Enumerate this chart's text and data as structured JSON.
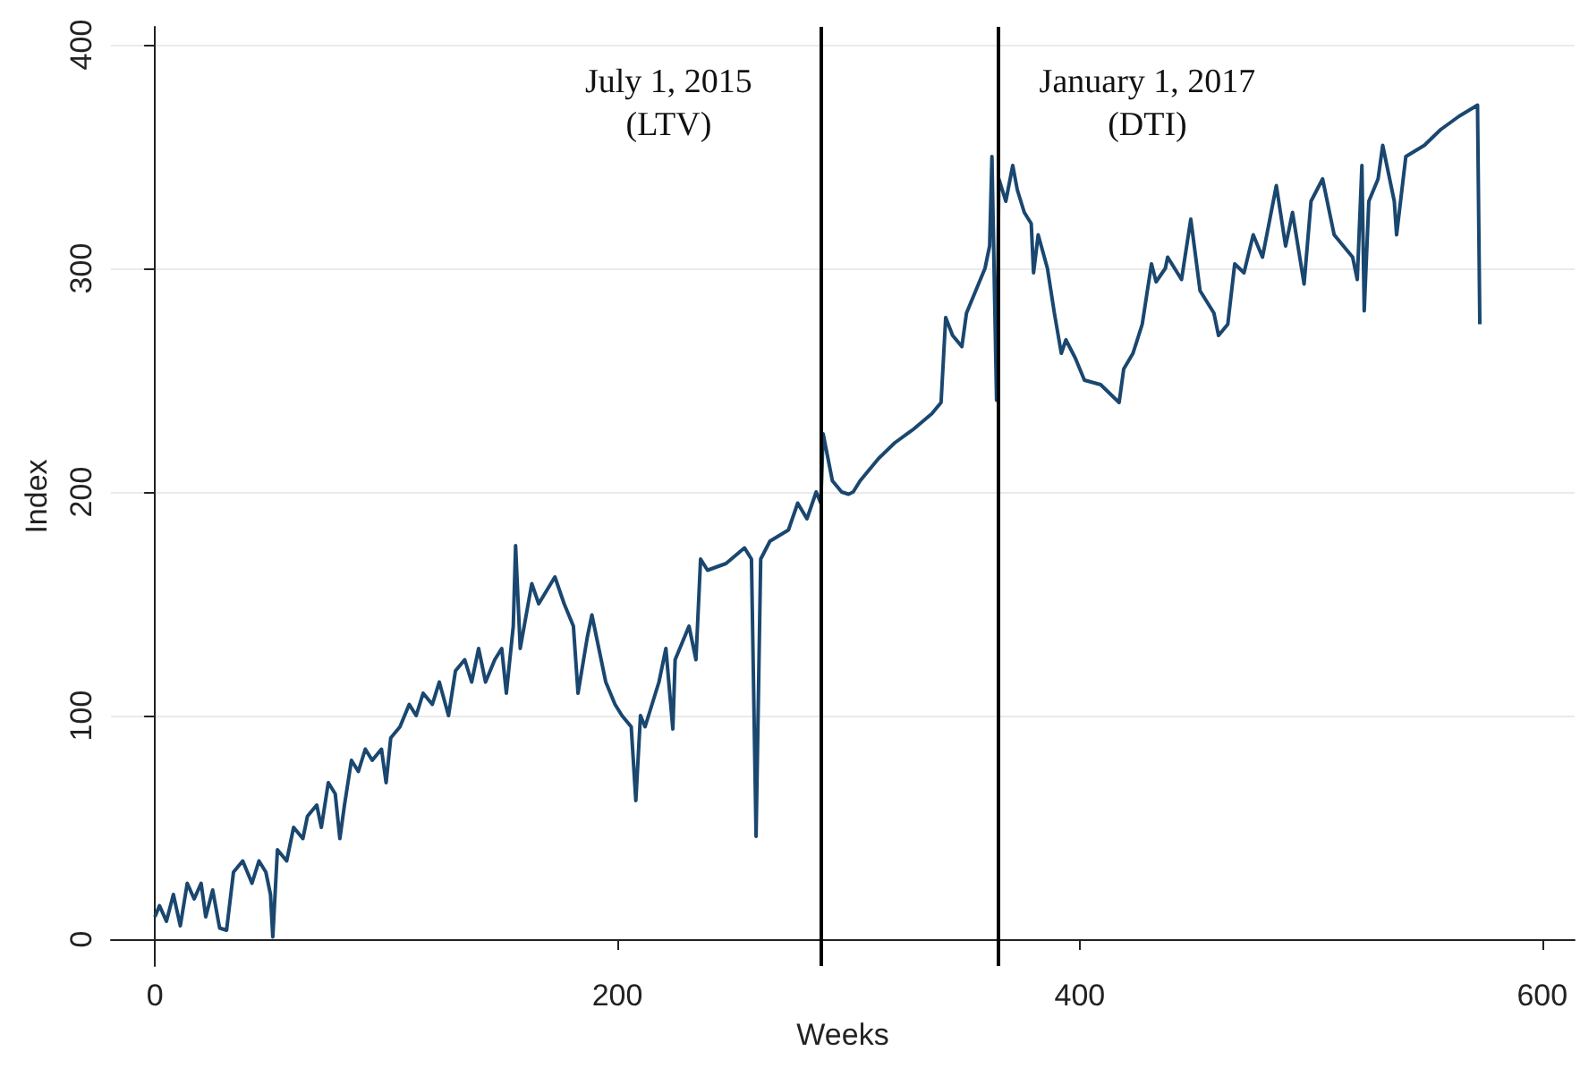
{
  "chart_data": {
    "type": "line",
    "xlabel": "Weeks",
    "ylabel": "Index",
    "xlim": [
      -19,
      614
    ],
    "ylim": [
      -12,
      408
    ],
    "xticks": [
      0,
      200,
      400,
      600
    ],
    "yticks": [
      0,
      100,
      200,
      300,
      400
    ],
    "grid": "y",
    "marker": "none",
    "line_style": "solid",
    "ref_lines": [
      {
        "axis": "x",
        "value": 288,
        "label": "July 1, 2015\n(LTV)",
        "color": "#000000"
      },
      {
        "axis": "x",
        "value": 365,
        "label": "January 1, 2017\n(DTI)",
        "color": "#000000"
      }
    ],
    "series": [
      {
        "color": "#1a476f",
        "x": [
          0,
          2,
          5,
          8,
          11,
          14,
          17,
          20,
          22,
          25,
          28,
          31,
          34,
          38,
          42,
          45,
          48,
          50,
          51,
          53,
          57,
          60,
          64,
          66,
          70,
          72,
          75,
          78,
          80,
          82,
          85,
          88,
          91,
          94,
          98,
          100,
          102,
          106,
          110,
          113,
          116,
          120,
          123,
          127,
          130,
          134,
          137,
          140,
          143,
          147,
          150,
          152,
          155,
          156,
          158,
          163,
          166,
          173,
          177,
          181,
          183,
          187,
          189,
          191,
          195,
          199,
          202,
          206,
          208,
          210,
          212,
          215,
          218,
          221,
          224,
          225,
          229,
          231,
          234,
          236,
          239,
          247,
          255,
          258,
          260,
          262,
          266,
          274,
          278,
          282,
          286,
          288,
          289,
          293,
          297,
          300,
          302,
          305,
          313,
          320,
          328,
          336,
          340,
          342,
          345,
          349,
          351,
          355,
          359,
          361,
          362,
          364,
          365,
          368,
          371,
          373,
          376,
          379,
          380,
          382,
          386,
          389,
          392,
          394,
          398,
          402,
          409,
          417,
          419,
          423,
          427,
          431,
          433,
          437,
          438,
          444,
          448,
          452,
          458,
          460,
          464,
          467,
          471,
          475,
          479,
          485,
          489,
          492,
          497,
          500,
          505,
          510,
          514,
          518,
          520,
          522,
          523,
          525,
          529,
          531,
          536,
          537,
          541,
          549,
          556,
          564,
          572,
          573
        ],
        "values": [
          10,
          15,
          8,
          20,
          6,
          25,
          18,
          25,
          10,
          22,
          5,
          4,
          30,
          35,
          25,
          35,
          30,
          20,
          1,
          40,
          35,
          50,
          45,
          55,
          60,
          50,
          70,
          65,
          45,
          60,
          80,
          75,
          85,
          80,
          85,
          70,
          90,
          95,
          105,
          100,
          110,
          105,
          115,
          100,
          120,
          125,
          115,
          130,
          115,
          125,
          130,
          110,
          140,
          176,
          130,
          159,
          150,
          162,
          150,
          140,
          110,
          135,
          145,
          135,
          115,
          105,
          100,
          95,
          62,
          100,
          95,
          105,
          115,
          130,
          94,
          125,
          135,
          140,
          125,
          170,
          165,
          168,
          175,
          170,
          46,
          170,
          178,
          183,
          195,
          188,
          200,
          195,
          226,
          205,
          200,
          199,
          200,
          205,
          215,
          222,
          228,
          235,
          240,
          278,
          270,
          265,
          280,
          290,
          300,
          310,
          350,
          241,
          340,
          330,
          346,
          335,
          325,
          320,
          298,
          315,
          300,
          280,
          262,
          268,
          260,
          250,
          248,
          240,
          255,
          262,
          275,
          302,
          294,
          300,
          305,
          295,
          322,
          290,
          280,
          270,
          275,
          302,
          298,
          315,
          305,
          337,
          310,
          325,
          293,
          330,
          340,
          315,
          310,
          305,
          295,
          346,
          281,
          330,
          340,
          355,
          330,
          315,
          350,
          355,
          362,
          368,
          373,
          275
        ]
      }
    ]
  }
}
